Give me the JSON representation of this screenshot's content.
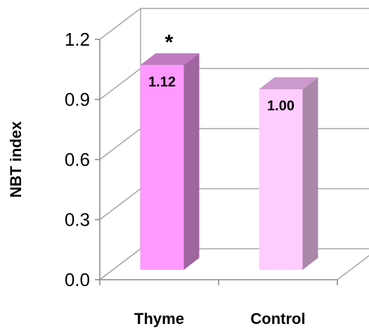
{
  "chart_data": {
    "type": "bar",
    "title": "",
    "xlabel": "",
    "ylabel": "NBT index",
    "ylim": [
      0,
      1.2
    ],
    "yticks": [
      0.0,
      0.3,
      0.6,
      0.9,
      1.2
    ],
    "ytick_labels": [
      "0.0",
      "0.3",
      "0.6",
      "0.9",
      "1.2"
    ],
    "categories": [
      "Thyme",
      "Control"
    ],
    "values": [
      1.12,
      1.0
    ],
    "value_labels": [
      "1.12",
      "1.00"
    ],
    "annotations": [
      {
        "category": "Thyme",
        "text": "*"
      }
    ],
    "grid": true,
    "legend": "none",
    "bar_colors": [
      {
        "front": "#ff99ff",
        "side": "#a066a0",
        "top": "#c07ac0"
      },
      {
        "front": "#ffccff",
        "side": "#aa88aa",
        "top": "#cc99cc"
      }
    ],
    "wall_color": "#a6a6a6",
    "axis_color": "#868686"
  }
}
